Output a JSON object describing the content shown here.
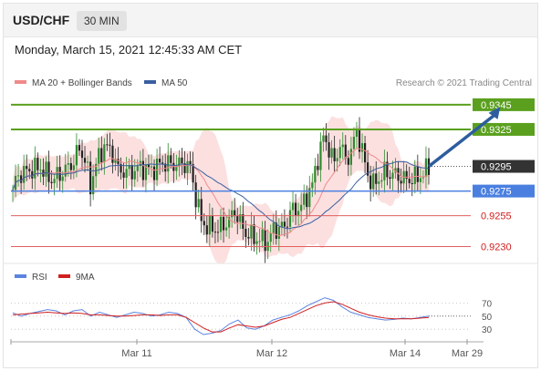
{
  "header": {
    "pair": "USD/CHF",
    "timeframe": "30 MIN"
  },
  "datetime": "Monday, March 15, 2021 12:45:33 AM CET",
  "legend": {
    "ma20": "MA 20 + Bollinger Bands",
    "ma50": "MA 50",
    "credit": "Research © 2021 Trading Central"
  },
  "colors": {
    "resistance": "#5aa01e",
    "support": "#e06060",
    "pivot": "#4a7fe0",
    "current": "#333333",
    "ma20": "#f08a8a",
    "ma50": "#3a5fa0",
    "bands": "#fbd6d6",
    "rsi": "#5b84e0",
    "rsi_ma": "#d02020"
  },
  "chart_data": [
    {
      "type": "candlestick",
      "levels": [
        {
          "value": 0.9345,
          "label": "0.9345",
          "kind": "resistance"
        },
        {
          "value": 0.9325,
          "label": "0.9325",
          "kind": "resistance"
        },
        {
          "value": 0.9295,
          "label": "0.9295",
          "kind": "current"
        },
        {
          "value": 0.9275,
          "label": "0.9275",
          "kind": "pivot"
        },
        {
          "value": 0.9255,
          "label": "0.9255",
          "kind": "support"
        },
        {
          "value": 0.923,
          "label": "0.9230",
          "kind": "support"
        }
      ],
      "ylim": [
        0.922,
        0.9356
      ],
      "x_ticks": [
        "Mar 11",
        "Mar 12",
        "Mar 14",
        "Mar 29"
      ],
      "close_path": [
        [
          0,
          0.9276
        ],
        [
          2,
          0.9288
        ],
        [
          6,
          0.9292
        ],
        [
          10,
          0.9294
        ],
        [
          14,
          0.9284
        ],
        [
          18,
          0.929
        ],
        [
          22,
          0.9299
        ],
        [
          24,
          0.931
        ],
        [
          26,
          0.93
        ],
        [
          28,
          0.9279
        ],
        [
          30,
          0.9297
        ],
        [
          33,
          0.9312
        ],
        [
          36,
          0.9306
        ],
        [
          38,
          0.9292
        ],
        [
          42,
          0.929
        ],
        [
          46,
          0.9294
        ],
        [
          50,
          0.9292
        ],
        [
          54,
          0.9298
        ],
        [
          58,
          0.9296
        ],
        [
          62,
          0.9297
        ],
        [
          64,
          0.9294
        ],
        [
          66,
          0.927
        ],
        [
          68,
          0.9251
        ],
        [
          70,
          0.9246
        ],
        [
          74,
          0.9244
        ],
        [
          78,
          0.9251
        ],
        [
          80,
          0.9259
        ],
        [
          82,
          0.9249
        ],
        [
          84,
          0.9241
        ],
        [
          88,
          0.9236
        ],
        [
          92,
          0.9234
        ],
        [
          94,
          0.9244
        ],
        [
          98,
          0.9246
        ],
        [
          100,
          0.9258
        ],
        [
          104,
          0.9262
        ],
        [
          108,
          0.928
        ],
        [
          110,
          0.9302
        ],
        [
          112,
          0.9318
        ],
        [
          114,
          0.931
        ],
        [
          116,
          0.9297
        ],
        [
          118,
          0.9314
        ],
        [
          120,
          0.93
        ],
        [
          122,
          0.9307
        ],
        [
          124,
          0.9324
        ],
        [
          126,
          0.9307
        ],
        [
          128,
          0.9288
        ],
        [
          130,
          0.928
        ],
        [
          134,
          0.929
        ],
        [
          138,
          0.9288
        ],
        [
          142,
          0.9284
        ],
        [
          146,
          0.9286
        ],
        [
          148,
          0.9289
        ],
        [
          150,
          0.9295
        ]
      ],
      "projection": {
        "from": [
          150,
          0.9295
        ],
        "to": [
          162,
          0.9345
        ]
      }
    },
    {
      "type": "line",
      "legend": [
        "RSI",
        "9MA"
      ],
      "y_ticks": [
        "70",
        "50",
        "30"
      ],
      "ylim": [
        15,
        90
      ],
      "rsi": [
        55,
        50,
        54,
        57,
        60,
        58,
        52,
        58,
        60,
        50,
        56,
        52,
        48,
        52,
        56,
        54,
        50,
        52,
        56,
        54,
        48,
        30,
        22,
        24,
        28,
        38,
        44,
        32,
        30,
        35,
        44,
        48,
        52,
        58,
        66,
        72,
        78,
        74,
        64,
        56,
        52,
        48,
        46,
        44,
        45,
        47,
        46,
        48,
        50
      ],
      "rsi_ma": [
        52,
        53,
        54,
        55,
        56,
        55,
        54,
        55,
        54,
        52,
        52,
        51,
        50,
        50,
        51,
        52,
        52,
        51,
        52,
        52,
        48,
        40,
        32,
        26,
        26,
        32,
        37,
        35,
        33,
        35,
        40,
        45,
        48,
        54,
        60,
        66,
        70,
        72,
        68,
        62,
        56,
        52,
        49,
        47,
        46,
        46,
        46,
        47,
        48
      ]
    }
  ]
}
